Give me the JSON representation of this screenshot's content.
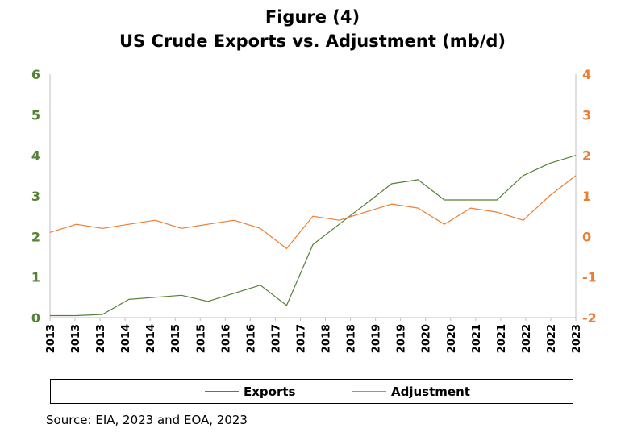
{
  "chart_data": {
    "type": "line",
    "title": "Figure (4)",
    "subtitle": "US Crude Exports vs. Adjustment  (mb/d)",
    "x": [
      "2013",
      "2013",
      "2014",
      "2014",
      "2015",
      "2015",
      "2016",
      "2016",
      "2017",
      "2017",
      "2018",
      "2018",
      "2019",
      "2019",
      "2020",
      "2020",
      "2021",
      "2021",
      "2022",
      "2022",
      "2023"
    ],
    "x_tick_labels": [
      "2013",
      "2013",
      "2013",
      "2014",
      "2014",
      "2015",
      "2015",
      "2016",
      "2016",
      "2017",
      "2017",
      "2018",
      "2018",
      "2019",
      "2019",
      "2020",
      "2020",
      "2021",
      "2021",
      "2022",
      "2022",
      "2023"
    ],
    "series": [
      {
        "name": "Exports",
        "axis": "left",
        "color": "#548235",
        "values": [
          0.05,
          0.05,
          0.08,
          0.45,
          0.5,
          0.55,
          0.4,
          0.6,
          0.8,
          0.3,
          1.8,
          2.3,
          2.8,
          3.3,
          3.4,
          2.9,
          2.9,
          2.9,
          3.5,
          3.8,
          4.0
        ]
      },
      {
        "name": "Adjustment",
        "axis": "right",
        "color": "#ED7D31",
        "values": [
          0.1,
          0.3,
          0.2,
          0.3,
          0.4,
          0.2,
          0.3,
          0.4,
          0.2,
          -0.3,
          0.5,
          0.4,
          0.6,
          0.8,
          0.7,
          0.3,
          0.7,
          0.6,
          0.4,
          1.0,
          1.5
        ]
      }
    ],
    "y_left": {
      "ylim": [
        0,
        6
      ],
      "ticks": [
        "0",
        "1",
        "2",
        "3",
        "4",
        "5",
        "6"
      ]
    },
    "y_right": {
      "ylim": [
        -2,
        4
      ],
      "ticks": [
        "-2",
        "-1",
        "0",
        "1",
        "2",
        "3",
        "4"
      ]
    },
    "legend": {
      "placement": "bottom",
      "entries": [
        "Exports",
        "Adjustment"
      ]
    },
    "grid": false
  },
  "source": "Source: EIA, 2023 and EOA, 2023"
}
